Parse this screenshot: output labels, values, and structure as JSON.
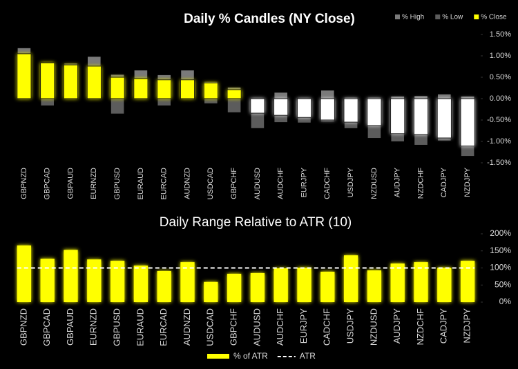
{
  "chart_data": [
    {
      "type": "candle",
      "title": "Daily % Candles (NY Close)",
      "categories": [
        "GBPNZD",
        "GBPCAD",
        "GBPAUD",
        "EURNZD",
        "GBPUSD",
        "EURAUD",
        "EURCAD",
        "AUDNZD",
        "USDCAD",
        "GBPCHF",
        "AUDUSD",
        "AUDCHF",
        "EURJPY",
        "CADCHF",
        "USDJPY",
        "NZDUSD",
        "AUDJPY",
        "NZDCHF",
        "CADJPY",
        "NZDJPY"
      ],
      "series": [
        {
          "name": "% High",
          "color": "#7a7a7a",
          "values": [
            1.18,
            0.84,
            0.82,
            0.98,
            0.56,
            0.66,
            0.55,
            0.66,
            0.39,
            0.26,
            0,
            0.14,
            0,
            0.19,
            0.02,
            0.02,
            0.05,
            0.06,
            0.1,
            0.05
          ]
        },
        {
          "name": "% Low",
          "color": "#5c5c5c",
          "values": [
            0,
            -0.16,
            0,
            0,
            -0.35,
            0,
            -0.16,
            0,
            -0.11,
            -0.32,
            -0.69,
            -0.55,
            -0.56,
            -0.53,
            -0.69,
            -0.92,
            -1.0,
            -1.08,
            -0.98,
            -1.34
          ]
        },
        {
          "name": "% Close",
          "color": "#ffff00",
          "negative_color": "#ffffff",
          "values": [
            1.05,
            0.84,
            0.79,
            0.76,
            0.5,
            0.47,
            0.44,
            0.44,
            0.37,
            0.21,
            -0.34,
            -0.39,
            -0.44,
            -0.5,
            -0.55,
            -0.63,
            -0.82,
            -0.84,
            -0.92,
            -1.11
          ]
        }
      ],
      "ylim": [
        -1.5,
        1.5
      ],
      "yticks": [
        {
          "value": 1.5,
          "label": "1.50%"
        },
        {
          "value": 1.0,
          "label": "1.00%"
        },
        {
          "value": 0.5,
          "label": "0.50%"
        },
        {
          "value": 0,
          "label": "0.00%"
        },
        {
          "value": -0.5,
          "label": "-0.50%"
        },
        {
          "value": -1.0,
          "label": "-1.00%"
        },
        {
          "value": -1.5,
          "label": "-1.50%"
        }
      ],
      "grid": false,
      "legend": "top-right"
    },
    {
      "type": "bar",
      "title": "Daily Range Relative to ATR (10)",
      "categories": [
        "GBPNZD",
        "GBPCAD",
        "GBPAUD",
        "EURNZD",
        "GBPUSD",
        "EURAUD",
        "EURCAD",
        "AUDNZD",
        "USDCAD",
        "GBPCHF",
        "AUDUSD",
        "AUDCHF",
        "EURJPY",
        "CADCHF",
        "USDJPY",
        "NZDUSD",
        "AUDJPY",
        "NZDCHF",
        "CADJPY",
        "NZDJPY"
      ],
      "series": [
        {
          "name": "% of ATR",
          "color": "#ffff00",
          "values": [
            166,
            127,
            153,
            125,
            121,
            107,
            91,
            117,
            59,
            83,
            85,
            99,
            101,
            89,
            137,
            93,
            113,
            117,
            101,
            121
          ]
        }
      ],
      "reference": {
        "name": "ATR",
        "value": 100,
        "color": "#ffffff"
      },
      "ylim": [
        0,
        200
      ],
      "yticks": [
        {
          "value": 200,
          "label": "200%"
        },
        {
          "value": 150,
          "label": "150%"
        },
        {
          "value": 100,
          "label": "100%"
        },
        {
          "value": 50,
          "label": "50%"
        },
        {
          "value": 0,
          "label": "0%"
        }
      ],
      "grid": false,
      "legend": "bottom"
    }
  ]
}
